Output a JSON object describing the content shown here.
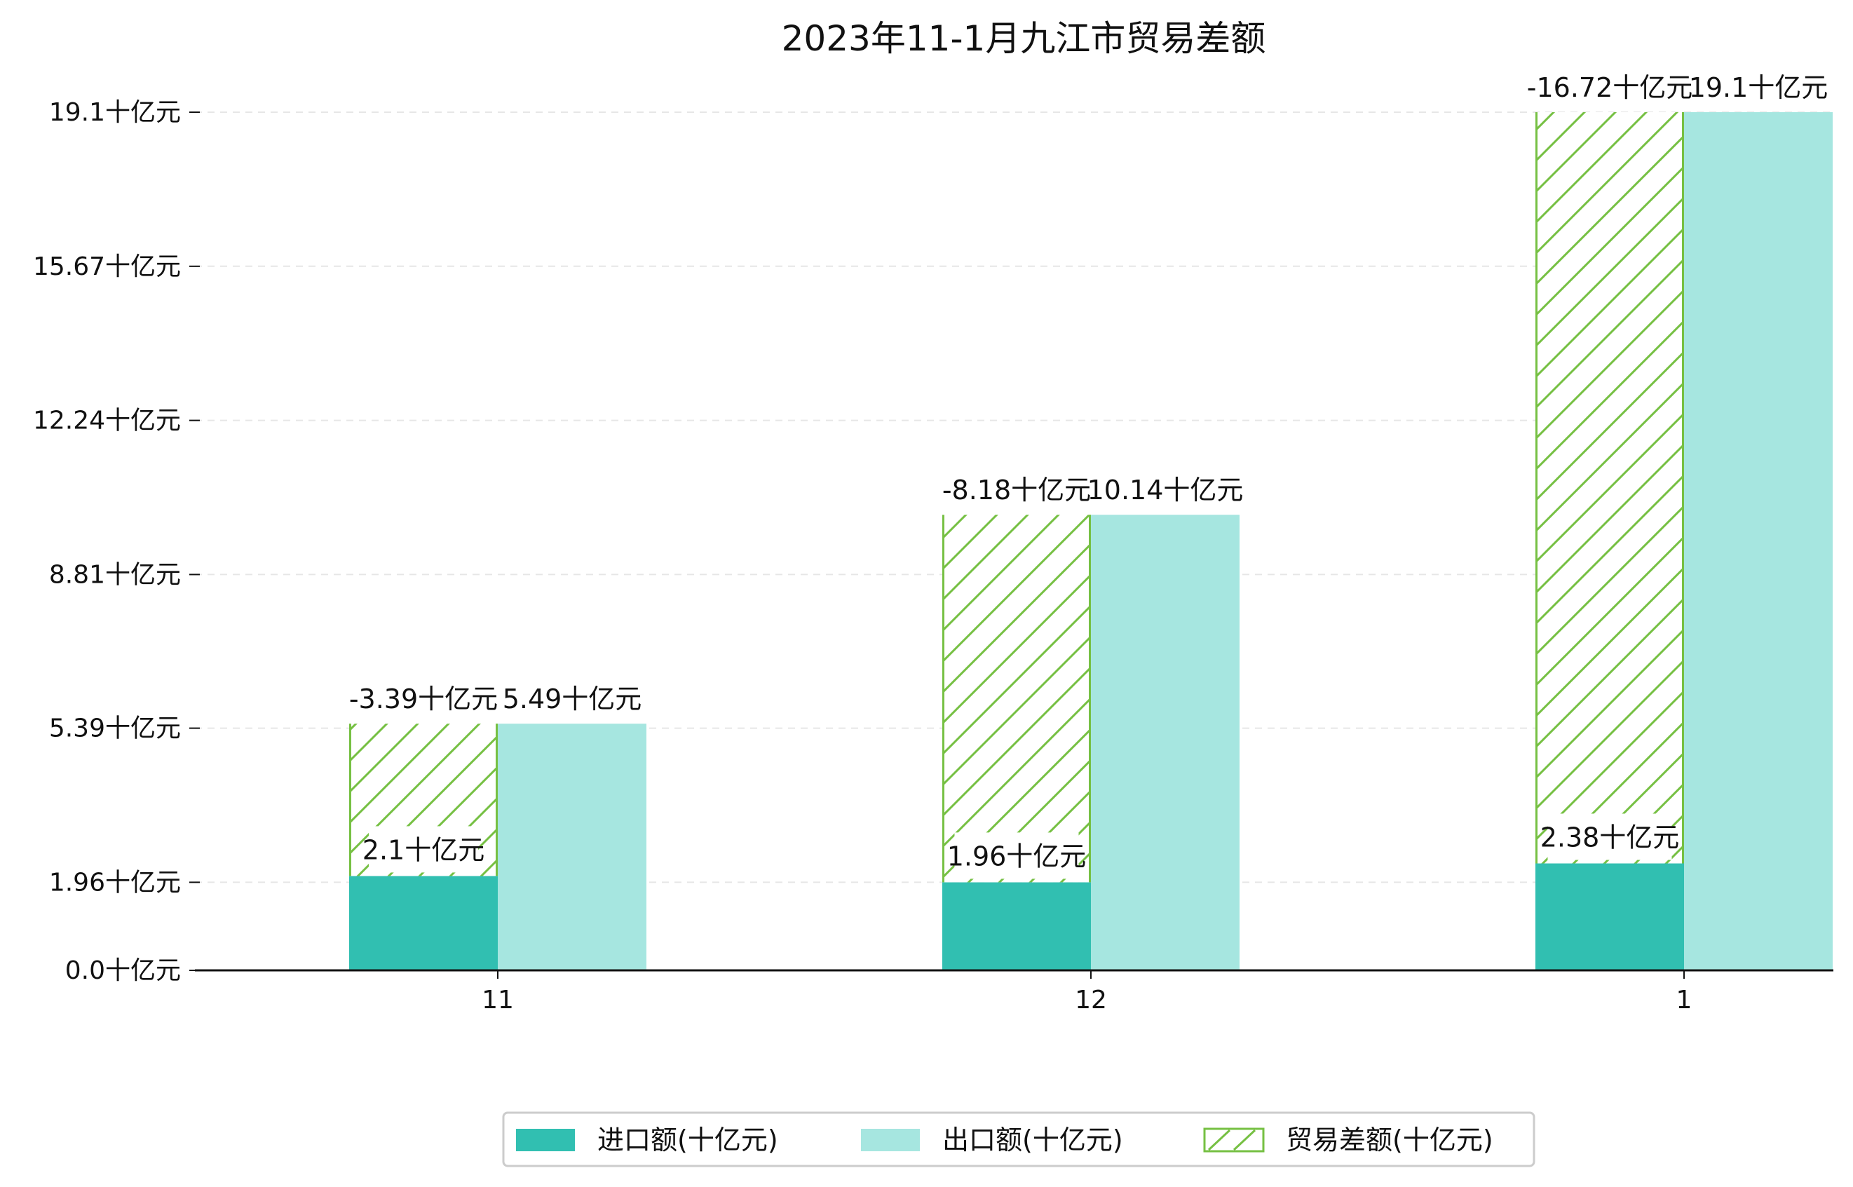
{
  "chart_data": {
    "type": "bar",
    "title": "2023年11-1月九江市贸易差额",
    "categories": [
      "11",
      "12",
      "1"
    ],
    "unit": "十亿元",
    "series": [
      {
        "key": "import",
        "name": "进口额(十亿元)",
        "values": [
          2.1,
          1.96,
          2.38
        ],
        "labels": [
          "2.1十亿元",
          "1.96十亿元",
          "2.38十亿元"
        ],
        "color": "#31bfb1"
      },
      {
        "key": "export",
        "name": "出口额(十亿元)",
        "values": [
          5.49,
          10.14,
          19.1
        ],
        "labels": [
          "5.49十亿元",
          "10.14十亿元",
          "19.1十亿元"
        ],
        "color": "#a6e6e0"
      },
      {
        "key": "balance",
        "name": "贸易差额(十亿元)",
        "values": [
          -3.39,
          -8.18,
          -16.72
        ],
        "labels": [
          "-3.39十亿元",
          "-8.18十亿元",
          "-16.72十亿元"
        ],
        "color": "#76c043",
        "hatch": true
      }
    ],
    "yticks": [
      0.0,
      1.96,
      5.39,
      8.81,
      12.24,
      15.67,
      19.1
    ],
    "ytick_labels": [
      "0.0十亿元",
      "1.96十亿元",
      "5.39十亿元",
      "8.81十亿元",
      "12.24十亿元",
      "15.67十亿元",
      "19.1十亿元"
    ],
    "ylim": [
      0,
      19.1
    ],
    "xlabel": "",
    "ylabel": "",
    "grid": "horizontal dashed",
    "legend": "bottom-center"
  }
}
